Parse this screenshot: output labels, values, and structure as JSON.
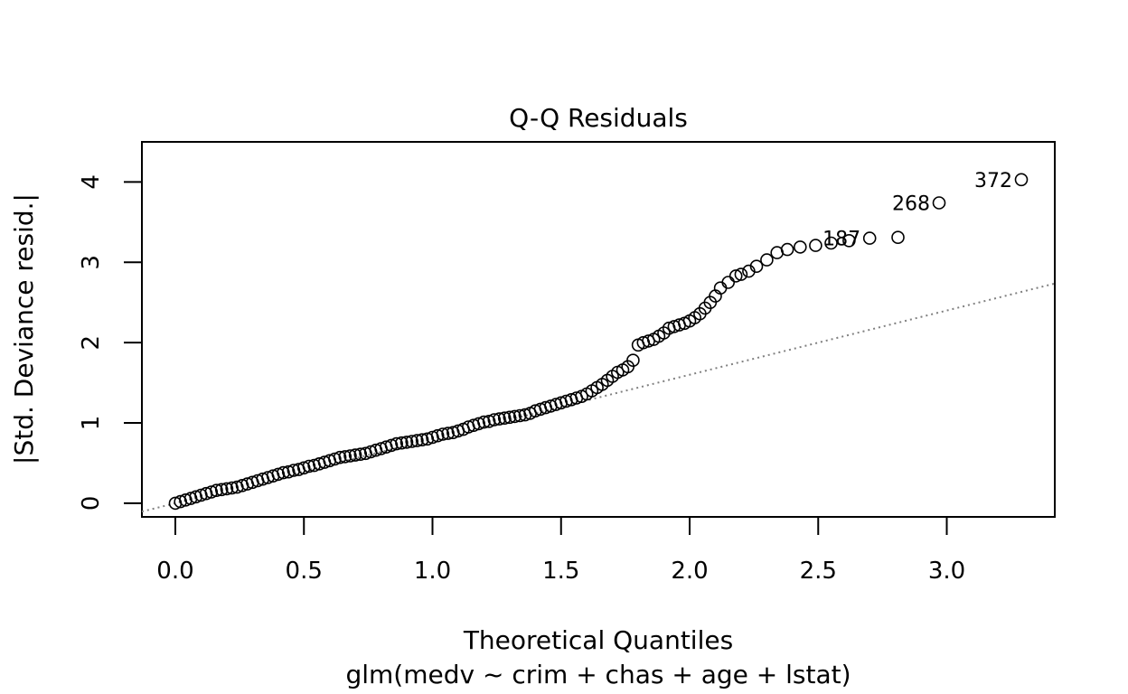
{
  "chart_data": {
    "type": "scatter",
    "title": "Q-Q Residuals",
    "xlabel": "Theoretical Quantiles",
    "subtitle": "glm(medv ~ crim + chas + age + lstat)",
    "ylabel": "|Std. Deviance resid.|",
    "xlim": [
      -0.13,
      3.42
    ],
    "ylim": [
      -0.17,
      4.5
    ],
    "xticks": [
      "0.0",
      "0.5",
      "1.0",
      "1.5",
      "2.0",
      "2.5",
      "3.0"
    ],
    "yticks": [
      "0",
      "1",
      "2",
      "3",
      "4"
    ],
    "reference_line": {
      "slope": 0.8,
      "intercept": 0.0,
      "style": "dotted",
      "color": "#808080"
    },
    "grid": false,
    "point_labels": [
      {
        "text": "372",
        "x": 3.29,
        "y": 4.03
      },
      {
        "text": "268",
        "x": 2.97,
        "y": 3.74
      },
      {
        "text": "187",
        "x": 2.7,
        "y": 3.3
      }
    ],
    "points": {
      "x": [
        0.0,
        0.02,
        0.04,
        0.06,
        0.08,
        0.1,
        0.12,
        0.14,
        0.16,
        0.18,
        0.2,
        0.22,
        0.24,
        0.26,
        0.28,
        0.3,
        0.32,
        0.34,
        0.36,
        0.38,
        0.4,
        0.42,
        0.44,
        0.46,
        0.48,
        0.5,
        0.52,
        0.54,
        0.56,
        0.58,
        0.6,
        0.62,
        0.64,
        0.66,
        0.68,
        0.7,
        0.72,
        0.74,
        0.76,
        0.78,
        0.8,
        0.82,
        0.84,
        0.86,
        0.88,
        0.9,
        0.92,
        0.94,
        0.96,
        0.98,
        1.0,
        1.02,
        1.04,
        1.06,
        1.08,
        1.1,
        1.12,
        1.14,
        1.16,
        1.18,
        1.2,
        1.22,
        1.24,
        1.26,
        1.28,
        1.3,
        1.32,
        1.34,
        1.36,
        1.38,
        1.4,
        1.42,
        1.44,
        1.46,
        1.48,
        1.5,
        1.52,
        1.54,
        1.56,
        1.58,
        1.6,
        1.62,
        1.64,
        1.66,
        1.68,
        1.7,
        1.72,
        1.74,
        1.76,
        1.78,
        1.8,
        1.82,
        1.84,
        1.86,
        1.88,
        1.9,
        1.92,
        1.94,
        1.96,
        1.98,
        2.0,
        2.02,
        2.04,
        2.06,
        2.08,
        2.1,
        2.12,
        2.15,
        2.18,
        2.2,
        2.23,
        2.26,
        2.3,
        2.34,
        2.38,
        2.43,
        2.49,
        2.55,
        2.62,
        2.7,
        2.81,
        2.97,
        3.29
      ],
      "y": [
        0.0,
        0.02,
        0.04,
        0.06,
        0.08,
        0.1,
        0.12,
        0.14,
        0.16,
        0.17,
        0.18,
        0.19,
        0.2,
        0.22,
        0.24,
        0.26,
        0.28,
        0.3,
        0.32,
        0.34,
        0.36,
        0.38,
        0.39,
        0.41,
        0.42,
        0.44,
        0.46,
        0.47,
        0.49,
        0.51,
        0.53,
        0.55,
        0.57,
        0.58,
        0.59,
        0.6,
        0.61,
        0.62,
        0.64,
        0.66,
        0.68,
        0.7,
        0.72,
        0.74,
        0.75,
        0.76,
        0.77,
        0.78,
        0.79,
        0.8,
        0.82,
        0.84,
        0.86,
        0.87,
        0.88,
        0.9,
        0.92,
        0.95,
        0.97,
        0.99,
        1.01,
        1.02,
        1.04,
        1.05,
        1.06,
        1.07,
        1.08,
        1.09,
        1.1,
        1.12,
        1.15,
        1.17,
        1.19,
        1.21,
        1.23,
        1.25,
        1.27,
        1.29,
        1.31,
        1.33,
        1.36,
        1.4,
        1.44,
        1.48,
        1.53,
        1.58,
        1.63,
        1.66,
        1.7,
        1.78,
        1.97,
        2.0,
        2.02,
        2.04,
        2.08,
        2.12,
        2.18,
        2.2,
        2.22,
        2.24,
        2.27,
        2.31,
        2.36,
        2.43,
        2.5,
        2.58,
        2.68,
        2.75,
        2.83,
        2.85,
        2.89,
        2.95,
        3.03,
        3.12,
        3.16,
        3.19,
        3.21,
        3.24,
        3.27,
        3.3,
        3.31,
        3.74,
        4.03
      ]
    }
  }
}
